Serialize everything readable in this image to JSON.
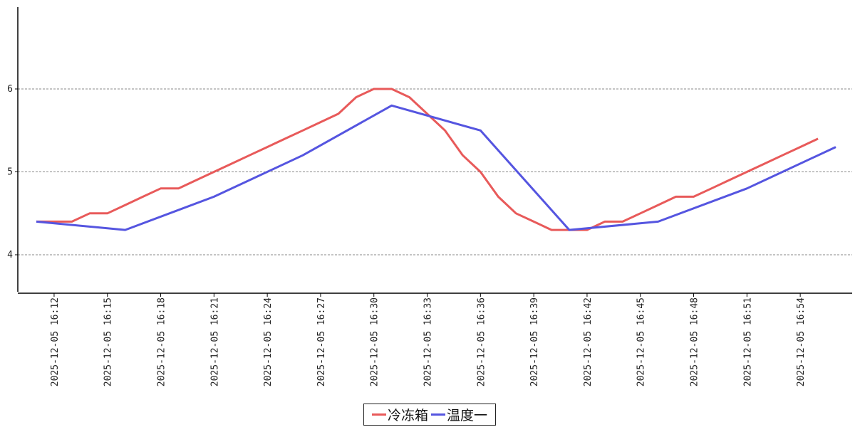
{
  "chart_data": {
    "type": "line",
    "x": [
      "2025-12-05 16:12",
      "2025-12-05 16:15",
      "2025-12-05 16:18",
      "2025-12-05 16:21",
      "2025-12-05 16:24",
      "2025-12-05 16:27",
      "2025-12-05 16:30",
      "2025-12-05 16:33",
      "2025-12-05 16:36",
      "2025-12-05 16:39",
      "2025-12-05 16:42",
      "2025-12-05 16:45",
      "2025-12-05 16:48",
      "2025-12-05 16:51",
      "2025-12-05 16:54"
    ],
    "ylim": [
      3.55,
      6.99
    ],
    "yticks": [
      "4",
      "5",
      "6"
    ],
    "grid": "horizontal dashed",
    "legend": "bottom-center",
    "series": [
      {
        "name": "冷冻箱",
        "color": "#e85a5a",
        "points": [
          [
            "2025-12-05 16:11",
            4.4
          ],
          [
            "2025-12-05 16:12",
            4.4
          ],
          [
            "2025-12-05 16:13",
            4.4
          ],
          [
            "2025-12-05 16:14",
            4.5
          ],
          [
            "2025-12-05 16:15",
            4.5
          ],
          [
            "2025-12-05 16:16",
            4.6
          ],
          [
            "2025-12-05 16:17",
            4.7
          ],
          [
            "2025-12-05 16:18",
            4.8
          ],
          [
            "2025-12-05 16:19",
            4.8
          ],
          [
            "2025-12-05 16:20",
            4.9
          ],
          [
            "2025-12-05 16:21",
            5.0
          ],
          [
            "2025-12-05 16:22",
            5.1
          ],
          [
            "2025-12-05 16:23",
            5.2
          ],
          [
            "2025-12-05 16:24",
            5.3
          ],
          [
            "2025-12-05 16:25",
            5.4
          ],
          [
            "2025-12-05 16:26",
            5.5
          ],
          [
            "2025-12-05 16:27",
            5.6
          ],
          [
            "2025-12-05 16:28",
            5.7
          ],
          [
            "2025-12-05 16:29",
            5.9
          ],
          [
            "2025-12-05 16:30",
            6.0
          ],
          [
            "2025-12-05 16:31",
            6.0
          ],
          [
            "2025-12-05 16:32",
            5.9
          ],
          [
            "2025-12-05 16:33",
            5.7
          ],
          [
            "2025-12-05 16:34",
            5.5
          ],
          [
            "2025-12-05 16:35",
            5.2
          ],
          [
            "2025-12-05 16:36",
            5.0
          ],
          [
            "2025-12-05 16:37",
            4.7
          ],
          [
            "2025-12-05 16:38",
            4.5
          ],
          [
            "2025-12-05 16:39",
            4.4
          ],
          [
            "2025-12-05 16:40",
            4.3
          ],
          [
            "2025-12-05 16:41",
            4.3
          ],
          [
            "2025-12-05 16:42",
            4.3
          ],
          [
            "2025-12-05 16:43",
            4.4
          ],
          [
            "2025-12-05 16:44",
            4.4
          ],
          [
            "2025-12-05 16:45",
            4.5
          ],
          [
            "2025-12-05 16:46",
            4.6
          ],
          [
            "2025-12-05 16:47",
            4.7
          ],
          [
            "2025-12-05 16:48",
            4.7
          ],
          [
            "2025-12-05 16:49",
            4.8
          ],
          [
            "2025-12-05 16:50",
            4.9
          ],
          [
            "2025-12-05 16:51",
            5.0
          ],
          [
            "2025-12-05 16:52",
            5.1
          ],
          [
            "2025-12-05 16:53",
            5.2
          ],
          [
            "2025-12-05 16:54",
            5.3
          ],
          [
            "2025-12-05 16:55",
            5.4
          ]
        ]
      },
      {
        "name": "温度一",
        "color": "#5555e0",
        "points": [
          [
            "2025-12-05 16:11",
            4.4
          ],
          [
            "2025-12-05 16:16",
            4.3
          ],
          [
            "2025-12-05 16:21",
            4.7
          ],
          [
            "2025-12-05 16:26",
            5.2
          ],
          [
            "2025-12-05 16:31",
            5.8
          ],
          [
            "2025-12-05 16:36",
            5.5
          ],
          [
            "2025-12-05 16:41",
            4.3
          ],
          [
            "2025-12-05 16:46",
            4.4
          ],
          [
            "2025-12-05 16:51",
            4.8
          ],
          [
            "2025-12-05 16:56",
            5.3
          ]
        ]
      }
    ]
  }
}
